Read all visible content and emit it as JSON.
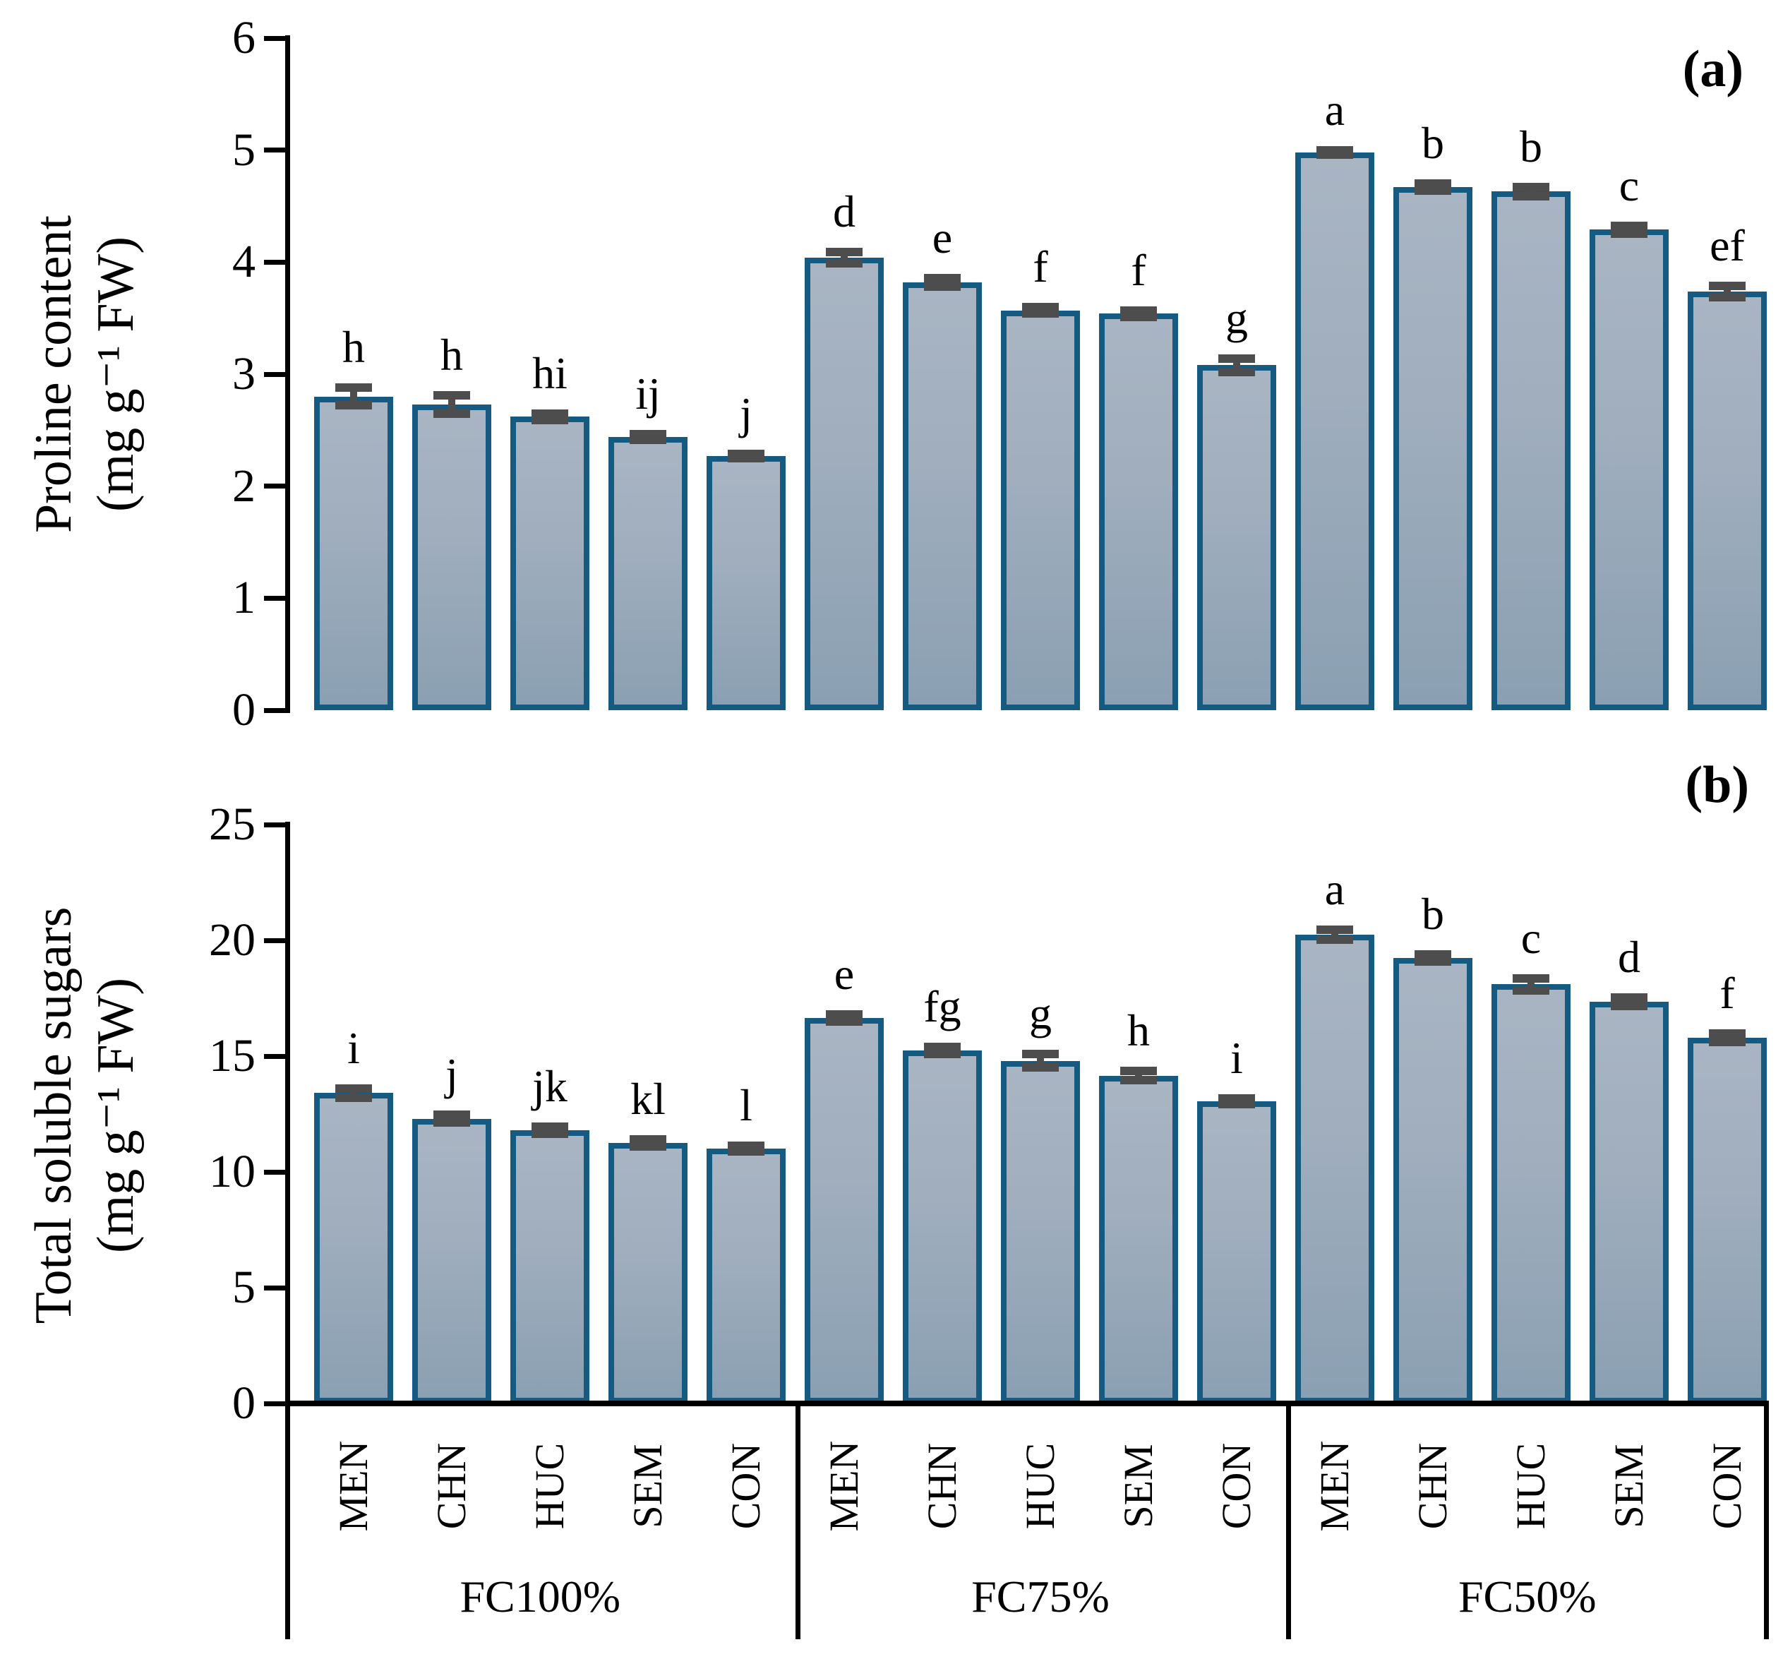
{
  "chart_data": [
    {
      "id": "a",
      "type": "bar",
      "panel_label": "(a)",
      "ylabel_lines": [
        "Proline content",
        "(mg g⁻¹ FW)"
      ],
      "ylabel": "Proline content (mg g⁻¹ FW)",
      "ylim": [
        0,
        6
      ],
      "yticks": [
        0,
        1,
        2,
        3,
        4,
        5,
        6
      ],
      "grid": false,
      "legend": "none",
      "categories": [
        "MEN",
        "CHN",
        "HUC",
        "SEM",
        "CON"
      ],
      "series": [
        {
          "group": "FC100%",
          "values": [
            2.8,
            2.73,
            2.62,
            2.44,
            2.27
          ],
          "errors": [
            0.08,
            0.08,
            0.03,
            0.025,
            0.02
          ],
          "letters": [
            "h",
            "h",
            "hi",
            "ij",
            "j"
          ]
        },
        {
          "group": "FC75%",
          "values": [
            4.04,
            3.82,
            3.57,
            3.54,
            3.08
          ],
          "errors": [
            0.05,
            0.04,
            0.03,
            0.03,
            0.06
          ],
          "letters": [
            "d",
            "e",
            "f",
            "f",
            "g"
          ]
        },
        {
          "group": "FC50%",
          "values": [
            4.98,
            4.67,
            4.63,
            4.29,
            3.74
          ],
          "errors": [
            0.02,
            0.03,
            0.04,
            0.035,
            0.05
          ],
          "letters": [
            "a",
            "b",
            "b",
            "c",
            "ef"
          ]
        }
      ]
    },
    {
      "id": "b",
      "type": "bar",
      "panel_label": "(b)",
      "ylabel_lines": [
        "Total soluble sugars",
        "(mg g⁻¹ FW)"
      ],
      "ylabel": "Total soluble sugars (mg g⁻¹ FW)",
      "ylim": [
        0,
        25
      ],
      "yticks": [
        0,
        5,
        10,
        15,
        20,
        25
      ],
      "grid": false,
      "legend": "none",
      "categories": [
        "MEN",
        "CHN",
        "HUC",
        "SEM",
        "CON"
      ],
      "series": [
        {
          "group": "FC100%",
          "values": [
            13.4,
            12.3,
            11.8,
            11.25,
            11.0
          ],
          "errors": [
            0.2,
            0.18,
            0.15,
            0.15,
            0.12
          ],
          "letters": [
            "i",
            "j",
            "jk",
            "kl",
            "l"
          ]
        },
        {
          "group": "FC75%",
          "values": [
            16.65,
            15.25,
            14.8,
            14.15,
            13.05
          ],
          "errors": [
            0.15,
            0.15,
            0.28,
            0.2,
            0.12
          ],
          "letters": [
            "e",
            "fg",
            "g",
            "h",
            "i"
          ]
        },
        {
          "group": "FC50%",
          "values": [
            20.25,
            19.25,
            18.1,
            17.35,
            15.8
          ],
          "errors": [
            0.22,
            0.15,
            0.25,
            0.18,
            0.18
          ],
          "letters": [
            "a",
            "b",
            "c",
            "d",
            "f"
          ]
        }
      ]
    }
  ],
  "panel_tags": {
    "a": "(a)",
    "b": "(b)"
  },
  "ylabels": {
    "a1": "Proline content",
    "a2": "(mg g⁻¹ FW)",
    "b1": "Total soluble sugars",
    "b2": "(mg g⁻¹ FW)"
  },
  "x_axis": {
    "groups": [
      {
        "label": "FC100%",
        "categories": [
          "MEN",
          "CHN",
          "HUC",
          "SEM",
          "CON"
        ]
      },
      {
        "label": "FC75%",
        "categories": [
          "MEN",
          "CHN",
          "HUC",
          "SEM",
          "CON"
        ]
      },
      {
        "label": "FC50%",
        "categories": [
          "MEN",
          "CHN",
          "HUC",
          "SEM",
          "CON"
        ]
      }
    ]
  },
  "colors": {
    "bar_border": "#155a80",
    "bar_fill_top": "#a9b5c3",
    "bar_fill_bottom": "#8aa0b2",
    "error_bar": "#4d4d4d",
    "axis": "#000000",
    "background": "#ffffff"
  }
}
